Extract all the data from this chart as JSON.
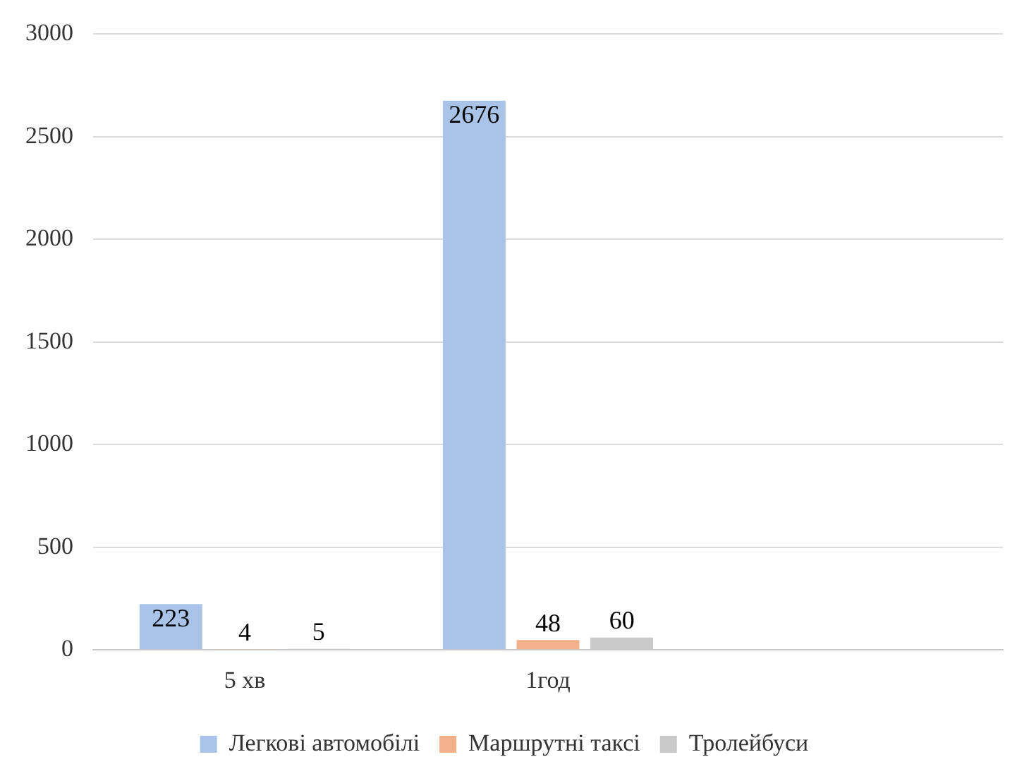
{
  "chart_data": {
    "type": "bar",
    "categories": [
      "5 хв",
      "1год",
      null
    ],
    "series": [
      {
        "name": "Легкові автомобілі",
        "color": "#a9c4e8",
        "values": [
          223,
          2676,
          null
        ]
      },
      {
        "name": "Маршрутні таксі",
        "color": "#f4b08a",
        "values": [
          4,
          48,
          null
        ]
      },
      {
        "name": "Тролейбуси",
        "color": "#c9c9c9",
        "values": [
          5,
          60,
          null
        ]
      }
    ],
    "ylim": [
      0,
      3000
    ],
    "yticks": [
      0,
      500,
      1000,
      1500,
      2000,
      2500,
      3000
    ],
    "grid": "y",
    "legend": "bottom",
    "data_labels": true
  }
}
